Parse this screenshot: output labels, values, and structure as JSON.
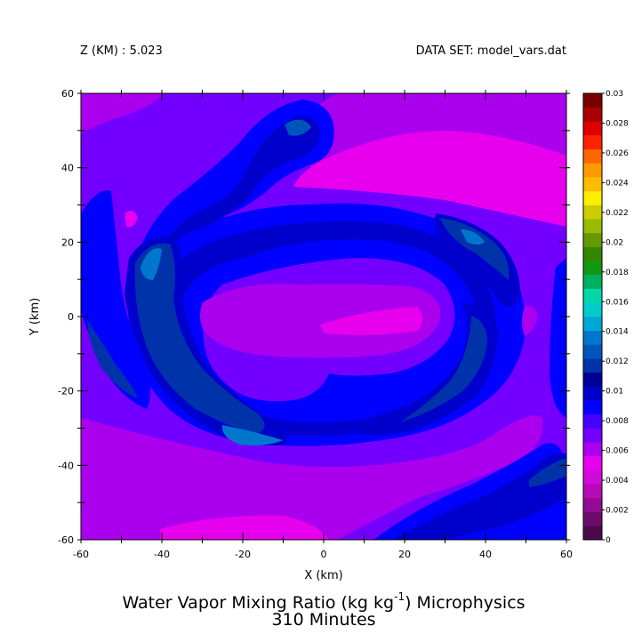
{
  "header": {
    "left": "Z (KM) : 5.023",
    "right": "DATA SET: model_vars.dat"
  },
  "chart_data": {
    "type": "heatmap",
    "title_main": "Water Vapor Mixing Ratio (kg kg",
    "title_sup": "-1",
    "title_tail": ") Microphysics",
    "subtitle": "310 Minutes",
    "xlabel": "X (km)",
    "ylabel": "Y (km)",
    "xlim": [
      -60,
      60
    ],
    "ylim": [
      -60,
      60
    ],
    "x_ticks": [
      "-60",
      "-40",
      "-20",
      "0",
      "20",
      "40",
      "60"
    ],
    "y_ticks": [
      "-60",
      "-40",
      "-20",
      "0",
      "20",
      "40",
      "60"
    ],
    "colorbar": {
      "levels": [
        "0",
        "0.002",
        "0.004",
        "0.006",
        "0.008",
        "0.01",
        "0.012",
        "0.014",
        "0.016",
        "0.018",
        "0.02",
        "0.022",
        "0.024",
        "0.026",
        "0.028",
        "0.03"
      ],
      "colors": [
        "#4a0a4a",
        "#6e0a6e",
        "#930a93",
        "#b80ab8",
        "#d00ad8",
        "#e600ee",
        "#aa00ee",
        "#7300ff",
        "#4600ff",
        "#0000ff",
        "#0000cc",
        "#000099",
        "#0033aa",
        "#0055bb",
        "#0077cc",
        "#00a8d8",
        "#00cccc",
        "#00d8a8",
        "#00b060",
        "#119911",
        "#338800",
        "#669900",
        "#99bb00",
        "#cccc00",
        "#ffee00",
        "#ffbb00",
        "#ff9900",
        "#ff6600",
        "#ff2200",
        "#dd0000",
        "#aa0000",
        "#7a0000"
      ]
    },
    "field_colors": {
      "lv6": "#e600ee",
      "lv7": "#aa00ee",
      "lv8": "#7300ff",
      "lv9": "#4600ff",
      "lv10": "#0000ff",
      "lv11": "#0000cc",
      "lv12": "#0033aa",
      "lv13": "#0055bb",
      "lv14": "#0077cc"
    }
  }
}
